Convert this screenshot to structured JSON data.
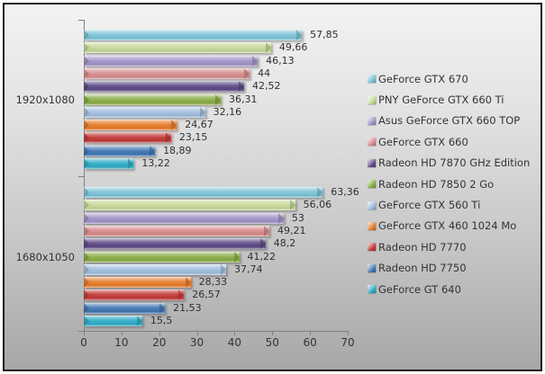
{
  "chart_data": {
    "type": "bar",
    "orientation": "horizontal",
    "title": "",
    "xlabel": "",
    "ylabel": "",
    "xlim": [
      0,
      70
    ],
    "x_ticks": [
      "0",
      "10",
      "20",
      "30",
      "40",
      "50",
      "60",
      "70"
    ],
    "grid": false,
    "legend_position": "right",
    "categories": [
      "1920x1080",
      "1680x1050"
    ],
    "series": [
      {
        "name": "GeForce GTX 670",
        "color": "#7fc3d7",
        "values": [
          57.85,
          63.36
        ],
        "labels": [
          "57,85",
          "63,36"
        ]
      },
      {
        "name": "PNY GeForce GTX 660 Ti",
        "color": "#c6d89a",
        "values": [
          49.66,
          56.06
        ],
        "labels": [
          "49,66",
          "56,06"
        ]
      },
      {
        "name": "Asus GeForce GTX 660 TOP",
        "color": "#a294c6",
        "values": [
          46.13,
          53
        ],
        "labels": [
          "46,13",
          "53"
        ]
      },
      {
        "name": "GeForce GTX 660",
        "color": "#d68c8e",
        "values": [
          44,
          49.21
        ],
        "labels": [
          "44",
          "49,21"
        ]
      },
      {
        "name": "Radeon HD 7870 GHz Edition",
        "color": "#5f4b87",
        "values": [
          42.52,
          48.2
        ],
        "labels": [
          "42,52",
          "48,2"
        ]
      },
      {
        "name": "Radeon HD 7850 2 Go",
        "color": "#8aad48",
        "values": [
          36.31,
          41.22
        ],
        "labels": [
          "36,31",
          "41,22"
        ]
      },
      {
        "name": "GeForce GTX 560 Ti",
        "color": "#a3bedd",
        "values": [
          32.16,
          37.74
        ],
        "labels": [
          "32,16",
          "37,74"
        ]
      },
      {
        "name": "GeForce GTX 460 1024 Mo",
        "color": "#e67d2e",
        "values": [
          24.67,
          28.33
        ],
        "labels": [
          "24,67",
          "28,33"
        ]
      },
      {
        "name": "Radeon HD 7770",
        "color": "#c23d3b",
        "values": [
          23.15,
          26.57
        ],
        "labels": [
          "23,15",
          "26,57"
        ]
      },
      {
        "name": "Radeon HD 7750",
        "color": "#4478b4",
        "values": [
          18.89,
          21.53
        ],
        "labels": [
          "18,89",
          "21,53"
        ]
      },
      {
        "name": "GeForce GT 640",
        "color": "#34adc7",
        "values": [
          13.22,
          15.5
        ],
        "labels": [
          "13,22",
          "15,5"
        ]
      }
    ]
  }
}
